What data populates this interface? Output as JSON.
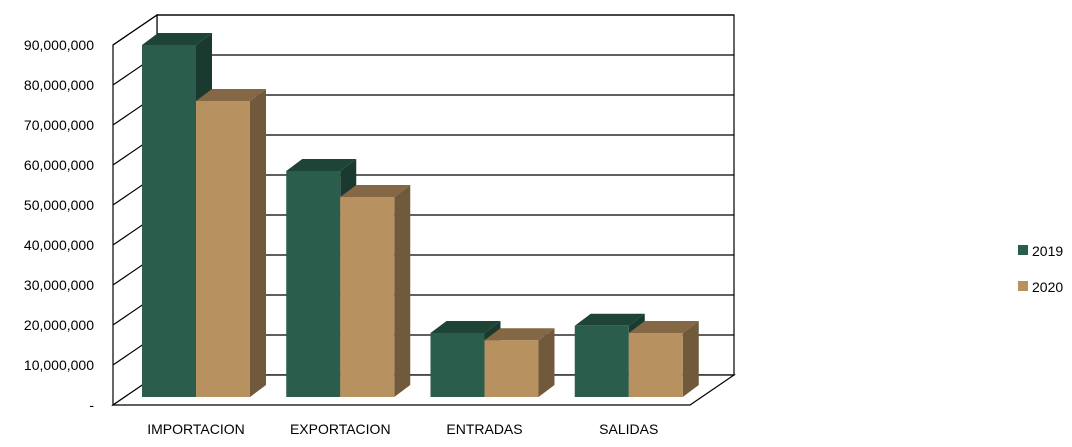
{
  "chart_data": {
    "type": "bar",
    "three_d": true,
    "categories": [
      "IMPORTACION",
      "EXPORTACION",
      "ENTRADAS",
      "SALIDAS"
    ],
    "series": [
      {
        "name": "2019",
        "values": [
          90000000,
          58500000,
          18000000,
          19800000
        ],
        "color": "#2a5d4c"
      },
      {
        "name": "2020",
        "values": [
          76000000,
          52000000,
          16200000,
          18000000
        ],
        "color": "#b79160"
      }
    ],
    "ylim": [
      0,
      90000000
    ],
    "yticks": [
      0,
      10000000,
      20000000,
      30000000,
      40000000,
      50000000,
      60000000,
      70000000,
      80000000,
      90000000
    ],
    "ytick_labels": [
      "-",
      "10,000,000",
      "20,000,000",
      "30,000,000",
      "40,000,000",
      "50,000,000",
      "60,000,000",
      "70,000,000",
      "80,000,000",
      "90,000,000"
    ],
    "grid": true,
    "legend_position": "right"
  }
}
